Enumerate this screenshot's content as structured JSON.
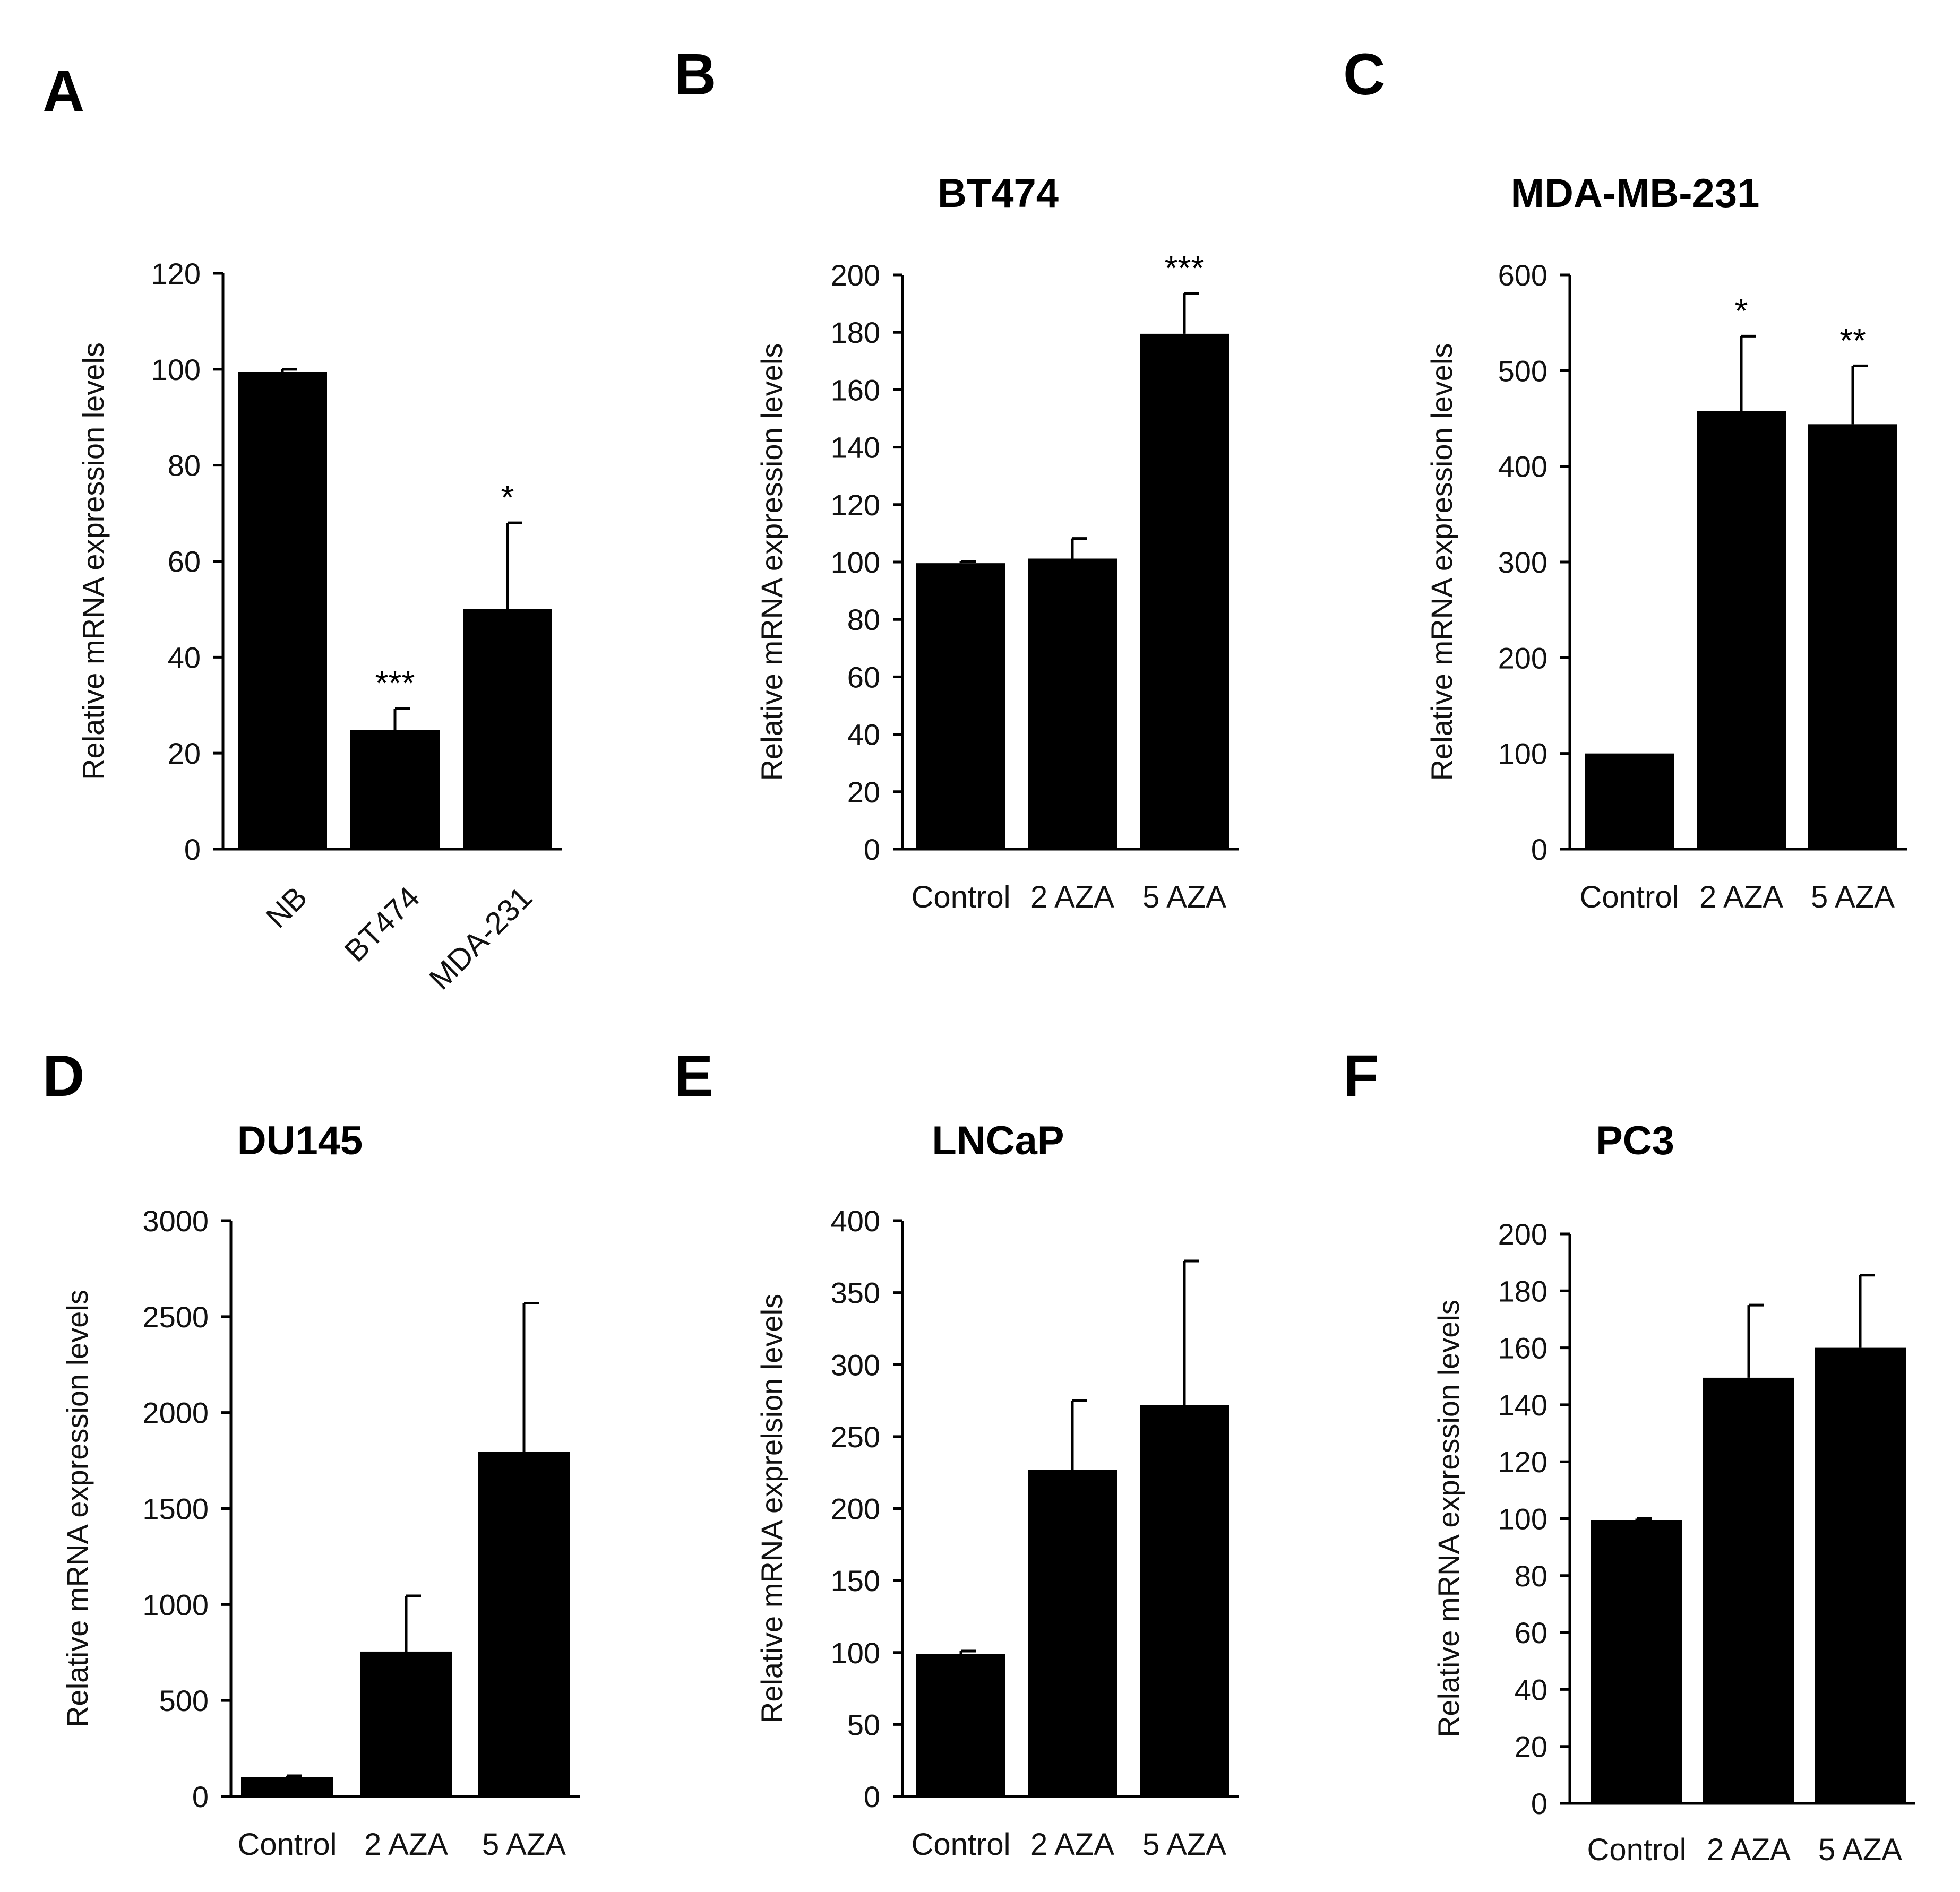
{
  "chart_data": [
    {
      "panel": "A",
      "type": "bar",
      "title": "",
      "ylabel": "Relative mRNA expression levels",
      "categories": [
        "NB",
        "BT474",
        "MDA-231"
      ],
      "values": [
        99.5,
        24.8,
        50.0
      ],
      "errors": [
        0.5,
        4.5,
        18.0
      ],
      "significance": [
        "",
        "***",
        "*"
      ],
      "ylim": [
        0,
        120
      ],
      "yticks": [
        0,
        20,
        40,
        60,
        80,
        100,
        120
      ],
      "rotated_labels": true
    },
    {
      "panel": "B",
      "type": "bar",
      "title": "BT474",
      "ylabel": "Relative mRNA expression levels",
      "categories": [
        "Control",
        "2 AZA",
        "5 AZA"
      ],
      "values": [
        99.6,
        101.2,
        179.5
      ],
      "errors": [
        0.6,
        7.0,
        14.0
      ],
      "significance": [
        "",
        "",
        "***"
      ],
      "ylim": [
        0,
        200
      ],
      "yticks": [
        0,
        20,
        40,
        60,
        80,
        100,
        120,
        140,
        160,
        180,
        200
      ],
      "rotated_labels": false
    },
    {
      "panel": "C",
      "type": "bar",
      "title": "MDA-MB-231",
      "ylabel": "Relative mRNA expression levels",
      "categories": [
        "Control",
        "2 AZA",
        "5 AZA"
      ],
      "values": [
        100,
        458,
        444
      ],
      "errors": [
        0,
        78,
        61
      ],
      "significance": [
        "",
        "*",
        "**"
      ],
      "ylim": [
        0,
        600
      ],
      "yticks": [
        0,
        100,
        200,
        300,
        400,
        500,
        600
      ],
      "rotated_labels": false
    },
    {
      "panel": "D",
      "type": "bar",
      "title": "DU145",
      "ylabel": "Relative  mRNA expression levels",
      "categories": [
        "Control",
        "2 AZA",
        "5 AZA"
      ],
      "values": [
        100,
        755,
        1795
      ],
      "errors": [
        8,
        290,
        775
      ],
      "significance": [
        "",
        "",
        ""
      ],
      "ylim": [
        0,
        3000
      ],
      "yticks": [
        0,
        500,
        1000,
        1500,
        2000,
        2500,
        3000
      ],
      "rotated_labels": false
    },
    {
      "panel": "E",
      "type": "bar",
      "title": "LNCaP",
      "ylabel": "Relative mRNA exprelsion levels",
      "categories": [
        "Control",
        "2 AZA",
        "5 AZA"
      ],
      "values": [
        99,
        227,
        272
      ],
      "errors": [
        2,
        48,
        100
      ],
      "significance": [
        "",
        "",
        ""
      ],
      "ylim": [
        0,
        400
      ],
      "yticks": [
        0,
        50,
        100,
        150,
        200,
        250,
        300,
        350,
        400
      ],
      "rotated_labels": false
    },
    {
      "panel": "F",
      "type": "bar",
      "title": "PC3",
      "ylabel": "Relative mRNA expression levels",
      "categories": [
        "Control",
        "2 AZA",
        "5 AZA"
      ],
      "values": [
        99.5,
        149.5,
        160.0
      ],
      "errors": [
        0.5,
        25.5,
        25.5
      ],
      "significance": [
        "",
        "",
        ""
      ],
      "ylim": [
        0,
        200
      ],
      "yticks": [
        0,
        20,
        40,
        60,
        80,
        100,
        120,
        140,
        160,
        180,
        200
      ],
      "rotated_labels": false
    }
  ]
}
